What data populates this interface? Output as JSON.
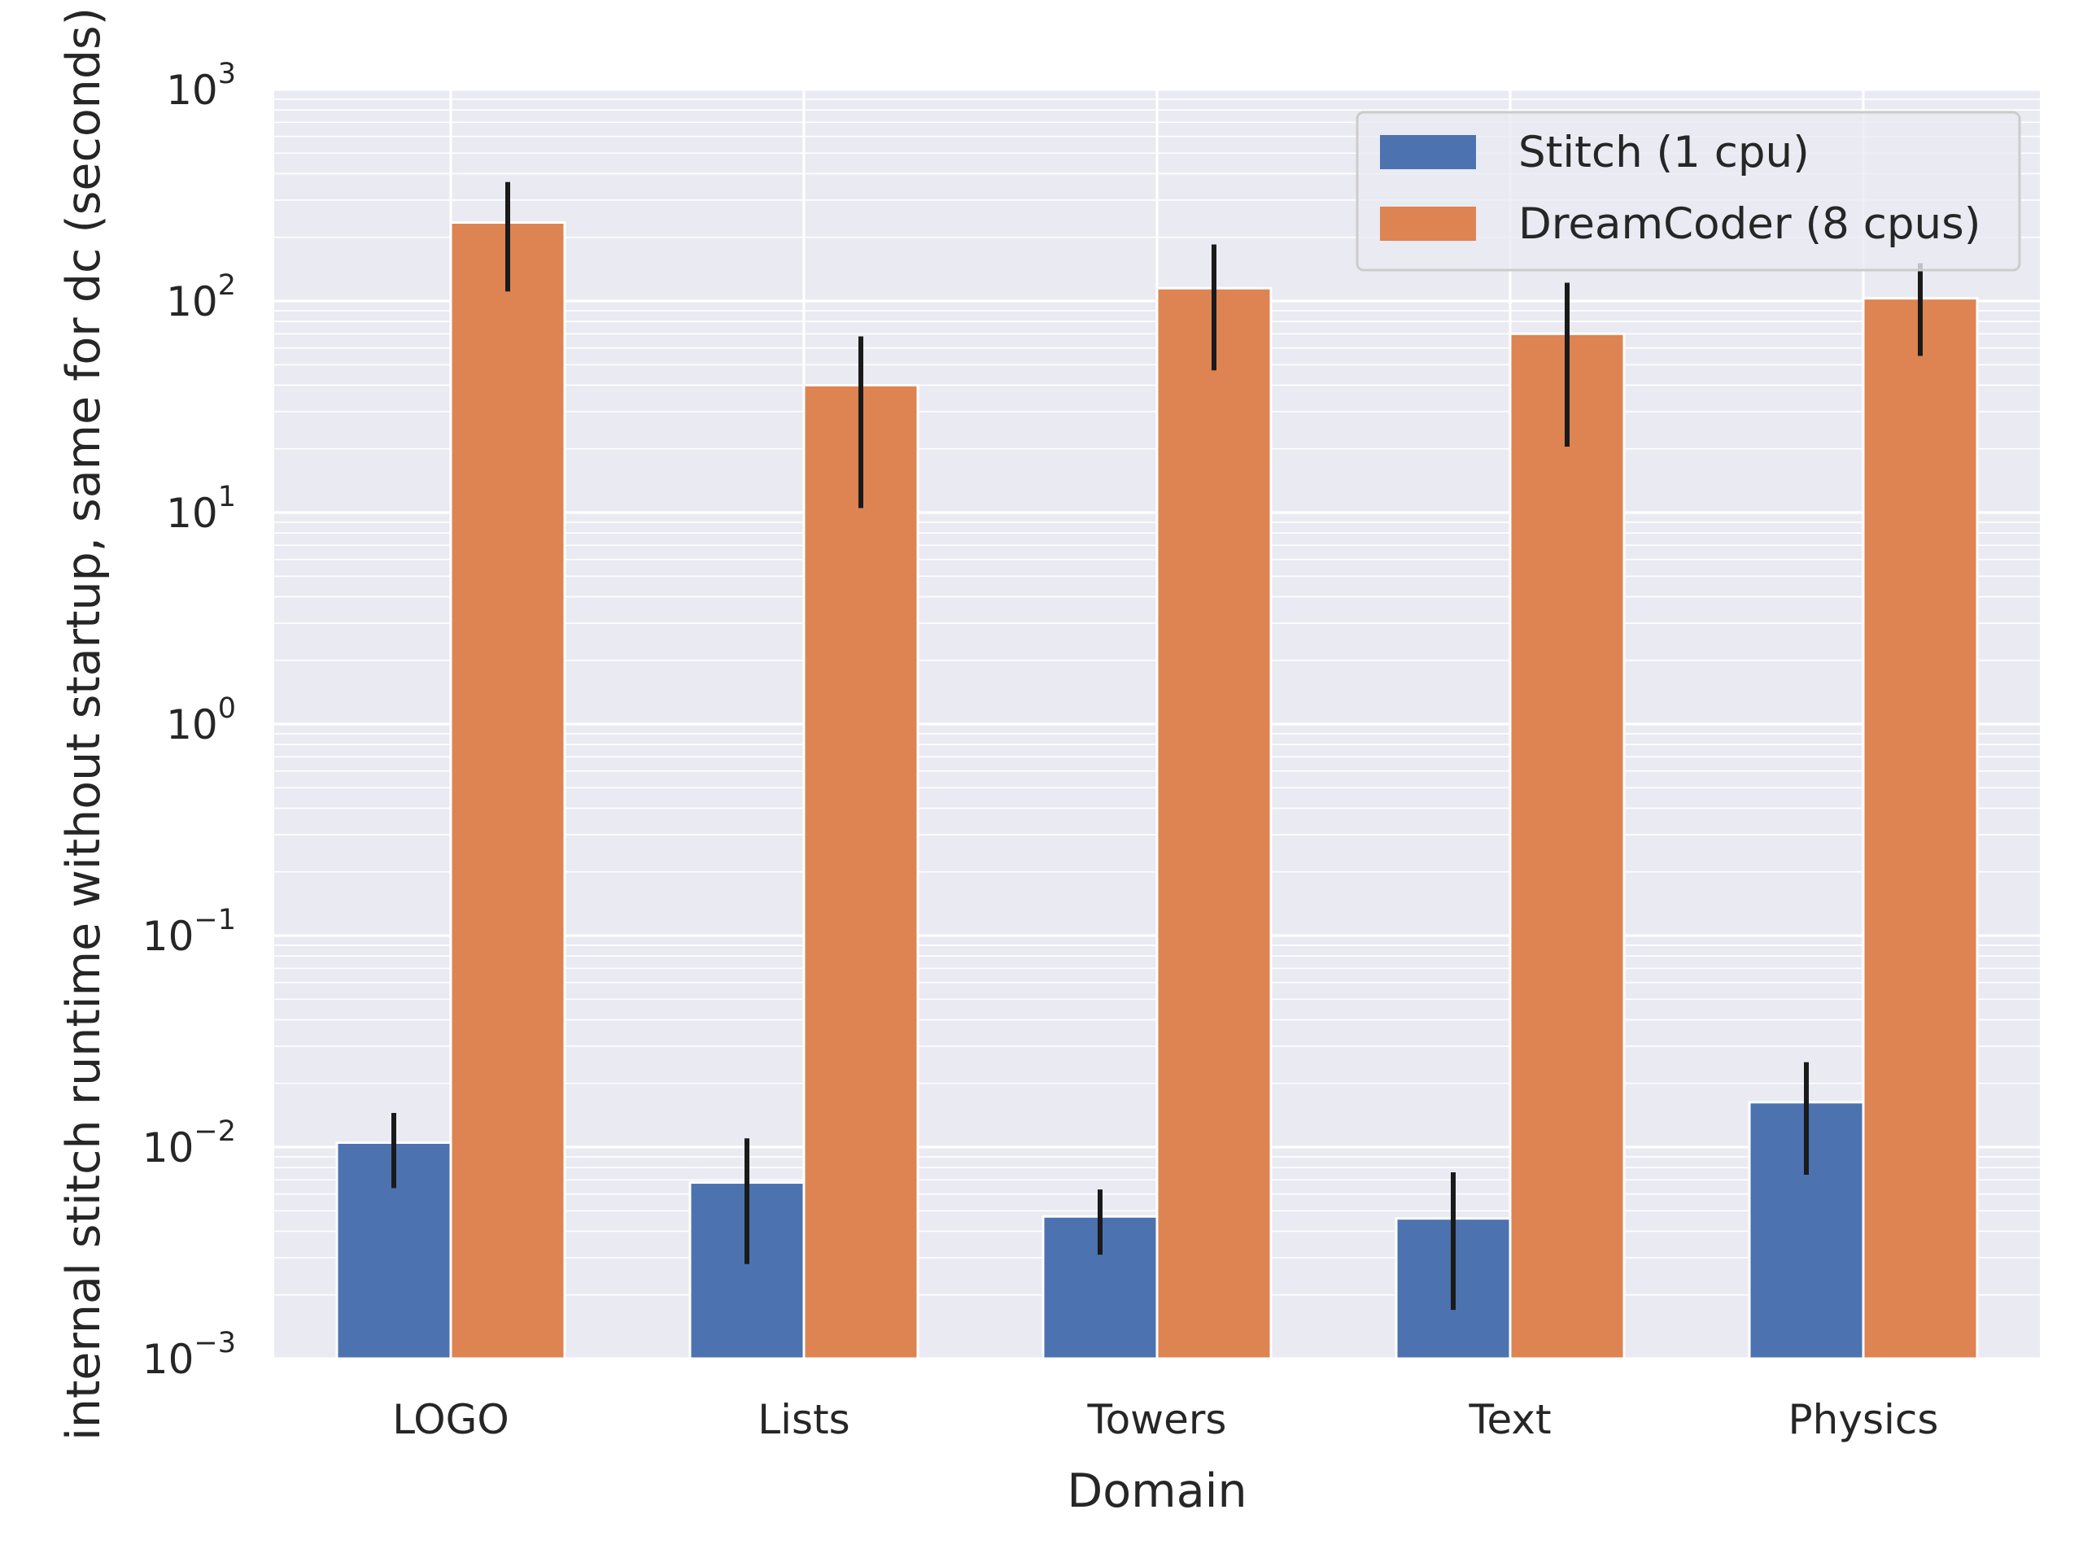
{
  "chart_data": {
    "type": "bar",
    "title": "",
    "xlabel": "Domain",
    "ylabel": "internal stitch runtime without startup, same for dc (seconds)",
    "yscale": "log",
    "ylim": [
      0.001,
      1000
    ],
    "yticks": [
      {
        "base": "10",
        "exp": "−3"
      },
      {
        "base": "10",
        "exp": "−2"
      },
      {
        "base": "10",
        "exp": "−1"
      },
      {
        "base": "10",
        "exp": "0"
      },
      {
        "base": "10",
        "exp": "1"
      },
      {
        "base": "10",
        "exp": "2"
      },
      {
        "base": "10",
        "exp": "3"
      }
    ],
    "categories": [
      "LOGO",
      "Lists",
      "Towers",
      "Text",
      "Physics"
    ],
    "grid": true,
    "legend_position": "top-right",
    "series": [
      {
        "name": "Stitch (1 cpu)",
        "color": "#4c72b0",
        "values": [
          0.0105,
          0.0068,
          0.0047,
          0.0046,
          0.0163
        ],
        "error_low": [
          0.0064,
          0.0028,
          0.0031,
          0.0017,
          0.0074
        ],
        "error_high": [
          0.0145,
          0.011,
          0.0063,
          0.0076,
          0.0252
        ]
      },
      {
        "name": "DreamCoder (8 cpus)",
        "color": "#dd8452",
        "values": [
          235,
          40,
          115,
          70,
          103
        ],
        "error_low": [
          111,
          10.5,
          47,
          20.5,
          55
        ],
        "error_high": [
          365,
          68,
          185,
          122,
          151
        ]
      }
    ]
  }
}
